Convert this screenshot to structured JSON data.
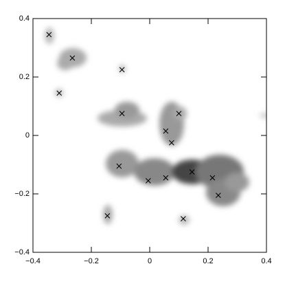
{
  "chart_data": {
    "type": "scatter",
    "color": "#000000",
    "x": [
      -0.345,
      -0.265,
      -0.095,
      -0.31,
      -0.095,
      0.1,
      0.055,
      0.075,
      -0.105,
      -0.005,
      0.055,
      0.145,
      0.215,
      0.235,
      -0.145,
      0.115
    ],
    "y": [
      0.345,
      0.265,
      0.225,
      0.145,
      0.075,
      0.075,
      0.015,
      -0.025,
      -0.105,
      -0.155,
      -0.145,
      -0.125,
      -0.145,
      -0.205,
      -0.275,
      -0.285
    ],
    "xlim": [
      -0.4,
      0.4
    ],
    "ylim": [
      -0.4,
      0.4
    ],
    "xticks": [
      {
        "value": -0.4,
        "label": "−0.4"
      },
      {
        "value": -0.2,
        "label": "−0.2"
      },
      0,
      0.2,
      0.4
    ],
    "yticks": [
      {
        "value": -0.4,
        "label": "−0.4"
      },
      {
        "value": -0.2,
        "label": "−0.2"
      },
      0,
      0.2,
      0.4
    ]
  }
}
